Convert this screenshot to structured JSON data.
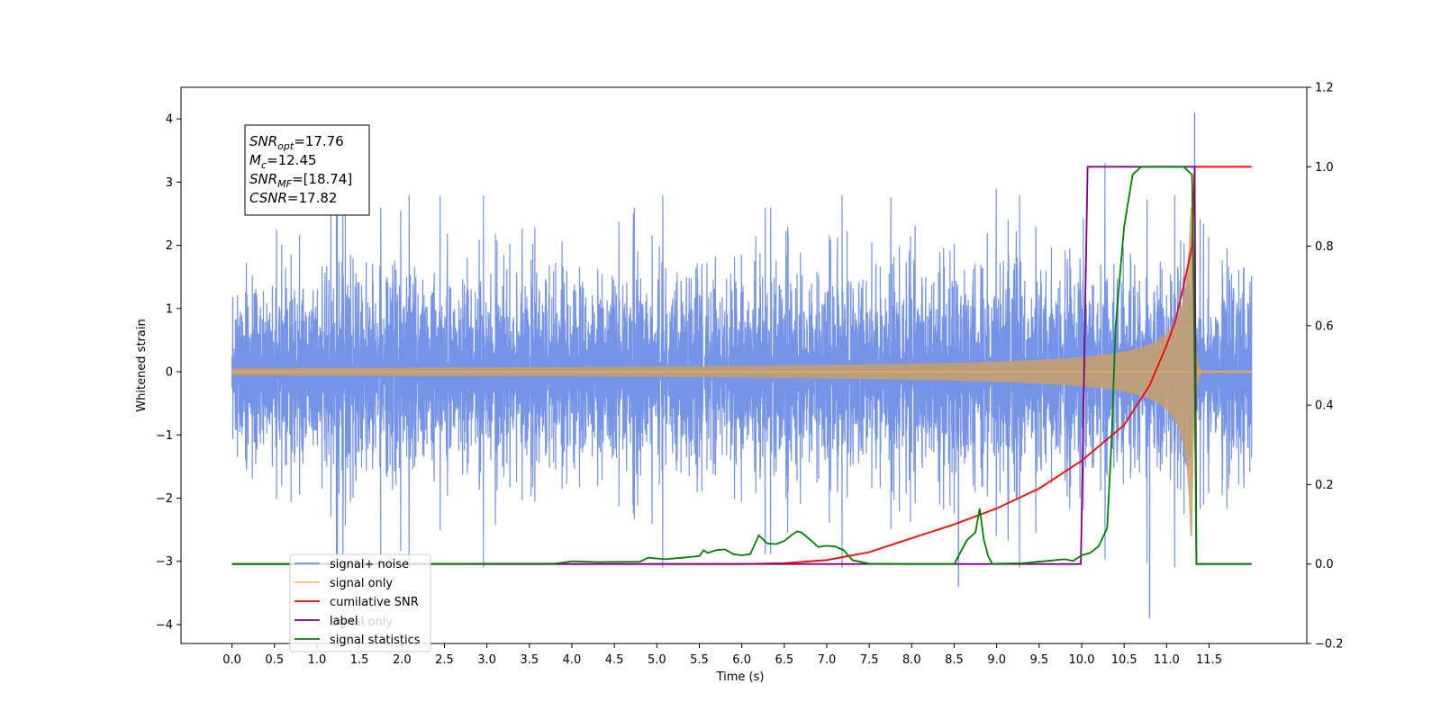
{
  "chart_data": {
    "type": "line",
    "title": "",
    "xlabel": "Time (s)",
    "ylabel": "Whitened strain",
    "ylabel_right": "",
    "xlim": [
      -0.6,
      12.65
    ],
    "ylim": [
      -4.3,
      4.5
    ],
    "ylim_right": [
      -0.2,
      1.2
    ],
    "x_ticks": [
      "0.0",
      "0.5",
      "1.0",
      "1.5",
      "2.0",
      "2.5",
      "3.0",
      "3.5",
      "4.0",
      "4.5",
      "5.0",
      "5.5",
      "6.0",
      "6.5",
      "7.0",
      "7.5",
      "8.0",
      "8.5",
      "9.0",
      "9.5",
      "10.0",
      "10.5",
      "11.0",
      "11.5"
    ],
    "y_ticks_left": [
      "4",
      "3",
      "2",
      "1",
      "0",
      "−1",
      "−2",
      "−3",
      "−4"
    ],
    "y_ticks_right": [
      "1.2",
      "1.0",
      "0.8",
      "0.6",
      "0.4",
      "0.2",
      "0.0",
      "−0.2"
    ],
    "grid": false,
    "legend_position": "lower-left",
    "series": [
      {
        "name": "signal+ noise",
        "axis": "left",
        "color": "#6f8ee6",
        "description_values": {
          "x_range": [
            0.0,
            12.0
          ],
          "typical_amplitude": 1.6,
          "max": 4.1,
          "min": -3.9
        }
      },
      {
        "name": "signal only",
        "axis": "left",
        "color": "#ffa500",
        "chirp": {
          "x_range": [
            0.0,
            12.0
          ],
          "merger_time": 11.3,
          "peak_amplitude": 2.6,
          "ringdown_end": 11.42
        }
      },
      {
        "name": "cumilative SNR",
        "axis": "right",
        "color": "#ff0000",
        "x": [
          0.0,
          6.0,
          6.5,
          7.0,
          7.5,
          8.0,
          8.5,
          9.0,
          9.5,
          10.0,
          10.5,
          10.8,
          11.0,
          11.1,
          11.2,
          11.3,
          11.33,
          12.0
        ],
        "y": [
          0.0,
          0.0,
          0.002,
          0.01,
          0.03,
          0.065,
          0.1,
          0.14,
          0.19,
          0.26,
          0.35,
          0.45,
          0.55,
          0.61,
          0.7,
          0.8,
          1.0,
          1.0
        ]
      },
      {
        "name": "label",
        "axis": "right",
        "color": "#800080",
        "x": [
          0.0,
          9.99,
          10.07,
          11.33,
          11.35,
          12.0
        ],
        "y": [
          0.0,
          0.0,
          1.0,
          1.0,
          0.0,
          0.0
        ]
      },
      {
        "name": "signal only",
        "axis": "right",
        "color": "#888888",
        "hidden": true
      },
      {
        "name": "signal statistics",
        "axis": "right",
        "color": "#008000",
        "x": [
          0.0,
          2.0,
          3.0,
          3.8,
          4.0,
          4.3,
          4.8,
          4.9,
          5.1,
          5.3,
          5.5,
          5.55,
          5.6,
          5.7,
          5.8,
          5.9,
          6.0,
          6.1,
          6.2,
          6.3,
          6.4,
          6.5,
          6.6,
          6.65,
          6.7,
          6.8,
          6.9,
          7.0,
          7.1,
          7.2,
          7.3,
          7.5,
          8.0,
          8.5,
          8.65,
          8.75,
          8.8,
          8.85,
          8.9,
          8.95,
          9.0,
          9.3,
          9.6,
          9.8,
          9.9,
          10.0,
          10.1,
          10.2,
          10.3,
          10.35,
          10.4,
          10.5,
          10.6,
          10.7,
          10.8,
          11.0,
          11.2,
          11.3,
          11.33,
          11.35,
          12.0
        ],
        "y": [
          0.0,
          0.0,
          0.001,
          0.001,
          0.007,
          0.005,
          0.006,
          0.016,
          0.012,
          0.016,
          0.02,
          0.035,
          0.028,
          0.035,
          0.037,
          0.025,
          0.022,
          0.025,
          0.072,
          0.052,
          0.05,
          0.058,
          0.075,
          0.082,
          0.08,
          0.062,
          0.043,
          0.046,
          0.044,
          0.035,
          0.01,
          0.001,
          0.0,
          0.0,
          0.06,
          0.08,
          0.14,
          0.06,
          0.02,
          0.0,
          0.001,
          0.002,
          0.008,
          0.012,
          0.008,
          0.022,
          0.028,
          0.045,
          0.09,
          0.3,
          0.6,
          0.85,
          0.98,
          1.0,
          1.0,
          1.0,
          1.0,
          0.98,
          0.5,
          0.0,
          0.0
        ]
      }
    ],
    "annotation": {
      "lines": [
        {
          "sym": "SNR",
          "sub": "opt",
          "val": "=17.76"
        },
        {
          "sym": "M",
          "sub": "c",
          "val": "=12.45"
        },
        {
          "sym": "SNR",
          "sub": "MF",
          "val": "=[18.74]"
        },
        {
          "sym": "CSNR",
          "sub": "",
          "val": "=17.82"
        }
      ]
    }
  }
}
